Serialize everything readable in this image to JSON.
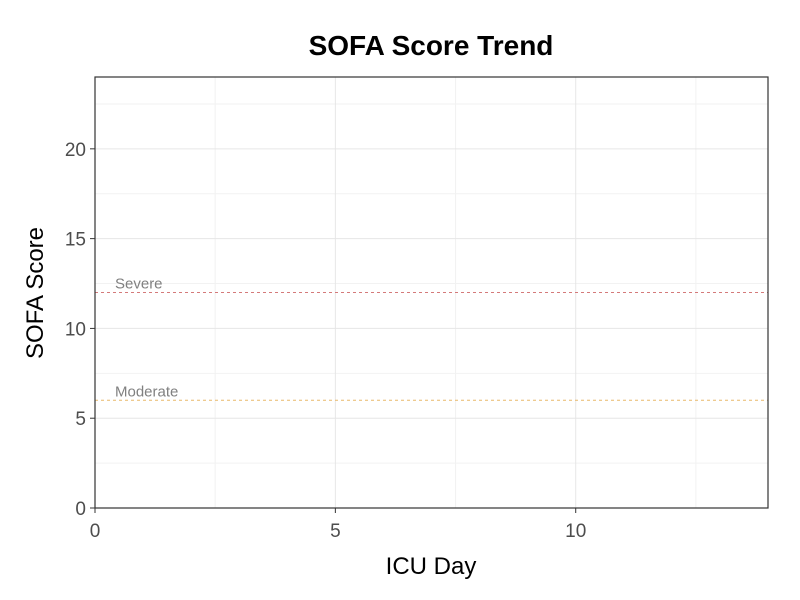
{
  "chart_data": {
    "type": "line",
    "title": "SOFA Score Trend",
    "xlabel": "ICU Day",
    "ylabel": "SOFA Score",
    "xlim": [
      0,
      14
    ],
    "ylim": [
      0,
      24
    ],
    "xticks": [
      0,
      5,
      10
    ],
    "yticks": [
      0,
      5,
      10,
      15,
      20
    ],
    "grid": true,
    "series": [],
    "reference_lines": [
      {
        "label": "Severe",
        "y": 12,
        "color": "#d47a7a"
      },
      {
        "label": "Moderate",
        "y": 6,
        "color": "#e8b86a"
      }
    ]
  }
}
